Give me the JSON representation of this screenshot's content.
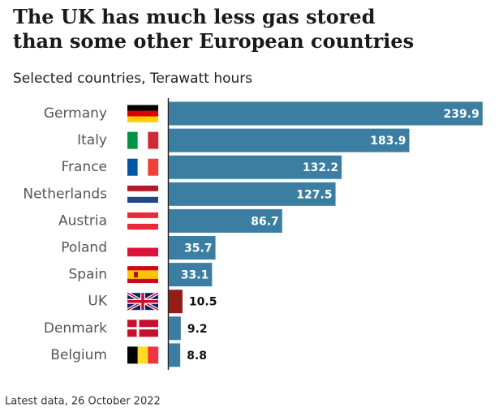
{
  "chart_data": {
    "type": "bar",
    "orientation": "horizontal",
    "title": "The UK has much less gas stored than some other European countries",
    "subtitle": "Selected countries, Terawatt hours",
    "footnote": "Latest data, 26 October 2022",
    "categories": [
      "Germany",
      "Italy",
      "France",
      "Netherlands",
      "Austria",
      "Poland",
      "Spain",
      "UK",
      "Denmark",
      "Belgium"
    ],
    "values": [
      239.9,
      183.9,
      132.2,
      127.5,
      86.7,
      35.7,
      33.1,
      10.5,
      9.2,
      8.8
    ],
    "colors": [
      "#3b7ea1",
      "#3b7ea1",
      "#3b7ea1",
      "#3b7ea1",
      "#3b7ea1",
      "#3b7ea1",
      "#3b7ea1",
      "#911f17",
      "#3b7ea1",
      "#3b7ea1"
    ]
  }
}
